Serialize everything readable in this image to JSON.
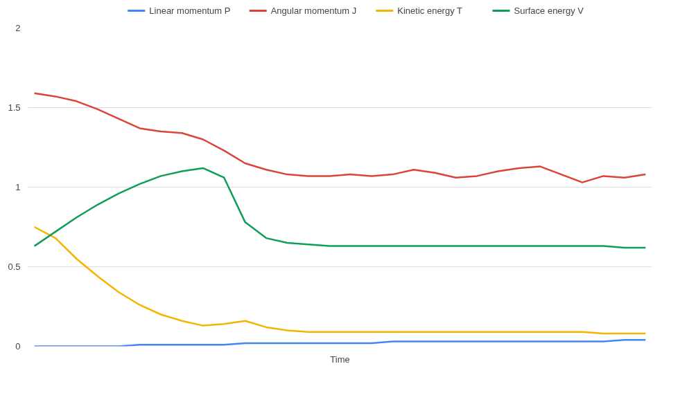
{
  "chart_data": {
    "type": "line",
    "xlabel": "Time",
    "categories": [
      null,
      null,
      null,
      null,
      null,
      null,
      null,
      null,
      null,
      null,
      null,
      null,
      null,
      null,
      null,
      null,
      null,
      null,
      null,
      null,
      null,
      null,
      null,
      null,
      null,
      null,
      null,
      null,
      null,
      null
    ],
    "series": [
      {
        "name": "Linear momentum P",
        "color": "#4285f4",
        "values": [
          0,
          0,
          0,
          0,
          0,
          0.01,
          0.01,
          0.01,
          0.01,
          0.01,
          0.02,
          0.02,
          0.02,
          0.02,
          0.02,
          0.02,
          0.02,
          0.03,
          0.03,
          0.03,
          0.03,
          0.03,
          0.03,
          0.03,
          0.03,
          0.03,
          0.03,
          0.03,
          0.04,
          0.04
        ]
      },
      {
        "name": "Angular momentum J",
        "color": "#db4437",
        "values": [
          1.59,
          1.57,
          1.54,
          1.49,
          1.43,
          1.37,
          1.35,
          1.34,
          1.3,
          1.23,
          1.15,
          1.11,
          1.08,
          1.07,
          1.07,
          1.08,
          1.07,
          1.08,
          1.11,
          1.09,
          1.06,
          1.07,
          1.1,
          1.12,
          1.13,
          1.08,
          1.03,
          1.07,
          1.06,
          1.08
        ]
      },
      {
        "name": "Kinetic energy T",
        "color": "#f4b400",
        "values": [
          0.75,
          0.68,
          0.55,
          0.44,
          0.34,
          0.26,
          0.2,
          0.16,
          0.13,
          0.14,
          0.16,
          0.12,
          0.1,
          0.09,
          0.09,
          0.09,
          0.09,
          0.09,
          0.09,
          0.09,
          0.09,
          0.09,
          0.09,
          0.09,
          0.09,
          0.09,
          0.09,
          0.08,
          0.08,
          0.08
        ]
      },
      {
        "name": "Surface energy V",
        "color": "#0f9d58",
        "values": [
          0.63,
          0.72,
          0.81,
          0.89,
          0.96,
          1.02,
          1.07,
          1.1,
          1.12,
          1.06,
          0.78,
          0.68,
          0.65,
          0.64,
          0.63,
          0.63,
          0.63,
          0.63,
          0.63,
          0.63,
          0.63,
          0.63,
          0.63,
          0.63,
          0.63,
          0.63,
          0.63,
          0.63,
          0.62,
          0.62
        ]
      }
    ],
    "ylim": [
      0,
      2
    ],
    "yticks": [
      0,
      0.5,
      1,
      1.5,
      2
    ],
    "grid": "y",
    "legend": "top",
    "tick_labels": "y",
    "marker": "none",
    "line_style": "solid"
  }
}
